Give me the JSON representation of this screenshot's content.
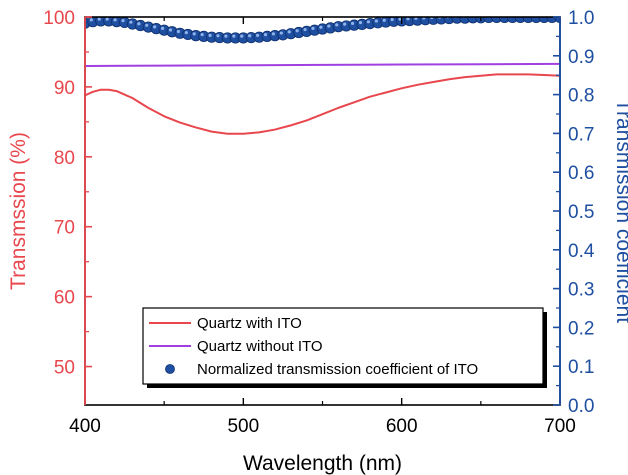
{
  "chart_data": {
    "type": "line",
    "xlabel": "Wavelength (nm)",
    "ylabel_left": "Transmssion (%)",
    "ylabel_right": "Transmission coefficient",
    "xlim": [
      400,
      700
    ],
    "ylim_left": [
      44.5,
      100
    ],
    "ylim_right": [
      0.0,
      1.0
    ],
    "x_ticks": [
      400,
      500,
      600,
      700
    ],
    "y_left_ticks": [
      50,
      60,
      70,
      80,
      90,
      100
    ],
    "y_right_ticks": [
      0.0,
      0.1,
      0.2,
      0.3,
      0.4,
      0.5,
      0.6,
      0.7,
      0.8,
      0.9,
      1.0
    ],
    "legend_position": "bottom-right",
    "colors": {
      "left_axis": "#e8474d",
      "right_axis": "#1f4fa0",
      "quartz_with_ito": "#e8474d",
      "quartz_without_ito": "#a040e0",
      "normalized": "#1f4fa0"
    },
    "series": [
      {
        "name": "Quartz with ITO",
        "axis": "left",
        "style": "line",
        "x": [
          400,
          405,
          410,
          415,
          420,
          430,
          440,
          450,
          460,
          470,
          480,
          490,
          500,
          510,
          520,
          530,
          540,
          550,
          560,
          570,
          580,
          590,
          600,
          610,
          620,
          630,
          640,
          650,
          660,
          670,
          680,
          690,
          700
        ],
        "y": [
          88.8,
          89.3,
          89.6,
          89.6,
          89.4,
          88.4,
          87.0,
          85.8,
          84.9,
          84.2,
          83.6,
          83.3,
          83.3,
          83.5,
          83.9,
          84.5,
          85.2,
          86.1,
          87.0,
          87.8,
          88.6,
          89.2,
          89.8,
          90.3,
          90.7,
          91.1,
          91.4,
          91.6,
          91.8,
          91.8,
          91.8,
          91.7,
          91.6
        ]
      },
      {
        "name": "Quartz without ITO",
        "axis": "left",
        "style": "line",
        "x": [
          400,
          450,
          500,
          550,
          600,
          650,
          700
        ],
        "y": [
          93.0,
          93.05,
          93.1,
          93.15,
          93.2,
          93.25,
          93.3
        ]
      },
      {
        "name": "Normalized transmission coefficient of ITO",
        "axis": "right",
        "style": "markers",
        "x": [
          400,
          405,
          410,
          415,
          420,
          425,
          430,
          435,
          440,
          445,
          450,
          455,
          460,
          465,
          470,
          475,
          480,
          485,
          490,
          495,
          500,
          505,
          510,
          515,
          520,
          525,
          530,
          535,
          540,
          545,
          550,
          555,
          560,
          565,
          570,
          575,
          580,
          585,
          590,
          595,
          600,
          605,
          610,
          615,
          620,
          625,
          630,
          635,
          640,
          645,
          650,
          655,
          660,
          665,
          670,
          675,
          680,
          685,
          690,
          695,
          700
        ],
        "y": [
          0.984,
          0.988,
          0.99,
          0.99,
          0.988,
          0.986,
          0.982,
          0.978,
          0.974,
          0.97,
          0.966,
          0.962,
          0.958,
          0.955,
          0.952,
          0.95,
          0.948,
          0.947,
          0.946,
          0.946,
          0.946,
          0.947,
          0.948,
          0.95,
          0.952,
          0.954,
          0.957,
          0.96,
          0.963,
          0.966,
          0.969,
          0.972,
          0.975,
          0.977,
          0.979,
          0.981,
          0.983,
          0.985,
          0.987,
          0.989,
          0.99,
          0.991,
          0.992,
          0.993,
          0.994,
          0.995,
          0.996,
          0.997,
          0.997,
          0.998,
          0.998,
          0.999,
          0.999,
          0.999,
          0.999,
          0.999,
          0.999,
          0.999,
          0.999,
          0.999,
          0.999
        ]
      }
    ]
  }
}
